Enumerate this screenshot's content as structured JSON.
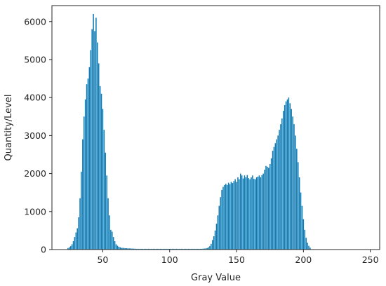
{
  "chart_data": {
    "type": "bar",
    "title": "",
    "xlabel": "Gray Value",
    "ylabel": "Quantity/Level",
    "xlim": [
      12,
      257
    ],
    "ylim": [
      0,
      6420
    ],
    "xticks": [
      50,
      100,
      150,
      200,
      250
    ],
    "yticks": [
      0,
      1000,
      2000,
      3000,
      4000,
      5000,
      6000
    ],
    "grid": false,
    "bar_color": "#0d7bb5",
    "x": [
      24,
      25,
      26,
      27,
      28,
      29,
      30,
      31,
      32,
      33,
      34,
      35,
      36,
      37,
      38,
      39,
      40,
      41,
      42,
      43,
      44,
      45,
      46,
      47,
      48,
      49,
      50,
      51,
      52,
      53,
      54,
      55,
      56,
      57,
      58,
      59,
      60,
      61,
      62,
      63,
      64,
      65,
      66,
      67,
      68,
      69,
      70,
      71,
      72,
      73,
      74,
      75,
      76,
      77,
      78,
      79,
      80,
      81,
      82,
      83,
      84,
      85,
      86,
      87,
      88,
      89,
      90,
      91,
      92,
      93,
      94,
      95,
      96,
      97,
      98,
      99,
      100,
      101,
      102,
      103,
      104,
      105,
      106,
      107,
      108,
      109,
      110,
      111,
      112,
      113,
      114,
      115,
      116,
      117,
      118,
      119,
      120,
      121,
      122,
      123,
      124,
      125,
      126,
      127,
      128,
      129,
      130,
      131,
      132,
      133,
      134,
      135,
      136,
      137,
      138,
      139,
      140,
      141,
      142,
      143,
      144,
      145,
      146,
      147,
      148,
      149,
      150,
      151,
      152,
      153,
      154,
      155,
      156,
      157,
      158,
      159,
      160,
      161,
      162,
      163,
      164,
      165,
      166,
      167,
      168,
      169,
      170,
      171,
      172,
      173,
      174,
      175,
      176,
      177,
      178,
      179,
      180,
      181,
      182,
      183,
      184,
      185,
      186,
      187,
      188,
      189,
      190,
      191,
      192,
      193,
      194,
      195,
      196,
      197,
      198,
      199,
      200,
      201,
      202,
      203,
      204,
      205
    ],
    "values": [
      40,
      60,
      90,
      140,
      220,
      330,
      450,
      560,
      850,
      1350,
      2050,
      2900,
      3500,
      3950,
      4350,
      4500,
      4800,
      5250,
      5800,
      6200,
      5750,
      6100,
      5450,
      4900,
      4300,
      4100,
      3700,
      3150,
      2550,
      1950,
      1350,
      900,
      520,
      470,
      330,
      220,
      140,
      100,
      75,
      60,
      45,
      45,
      40,
      35,
      35,
      30,
      30,
      30,
      25,
      25,
      25,
      20,
      20,
      20,
      20,
      20,
      20,
      20,
      20,
      20,
      20,
      20,
      20,
      20,
      20,
      20,
      20,
      20,
      20,
      20,
      20,
      20,
      20,
      20,
      20,
      20,
      20,
      20,
      20,
      20,
      20,
      20,
      20,
      20,
      20,
      20,
      20,
      20,
      20,
      20,
      20,
      20,
      20,
      20,
      20,
      20,
      20,
      20,
      20,
      20,
      20,
      25,
      25,
      30,
      40,
      60,
      90,
      150,
      250,
      350,
      500,
      680,
      900,
      1150,
      1380,
      1570,
      1650,
      1700,
      1730,
      1700,
      1760,
      1720,
      1780,
      1750,
      1800,
      1850,
      1780,
      1900,
      1850,
      2000,
      1950,
      1870,
      1950,
      1900,
      1960,
      1880,
      1850,
      1900,
      1950,
      1860,
      1850,
      1900,
      1920,
      1950,
      1900,
      1960,
      2000,
      2100,
      2200,
      2180,
      2150,
      2250,
      2400,
      2600,
      2700,
      2800,
      2900,
      3000,
      3150,
      3300,
      3450,
      3650,
      3800,
      3900,
      3950,
      4000,
      3850,
      3700,
      3500,
      3300,
      3000,
      2650,
      2300,
      1900,
      1500,
      1150,
      800,
      520,
      310,
      180,
      100,
      50
    ]
  }
}
